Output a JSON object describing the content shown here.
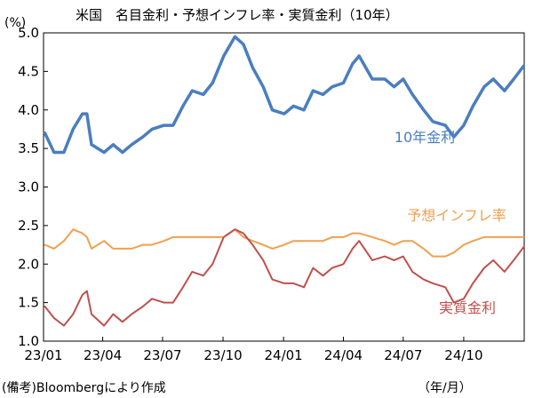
{
  "chart_data": {
    "type": "line",
    "title": "米国　名目金利・予想インフレ率・実質金利（10年）",
    "y_unit": "(%)",
    "x_unit": "（年/月）",
    "source_note": "(備考)Bloombergにより作成",
    "ylim": [
      1.0,
      5.0
    ],
    "y_ticks": [
      "1.0",
      "1.5",
      "2.0",
      "2.5",
      "3.0",
      "3.5",
      "4.0",
      "4.5",
      "5.0"
    ],
    "x_ticks": [
      "23/01",
      "23/04",
      "23/07",
      "23/10",
      "24/01",
      "24/04",
      "24/07",
      "24/10"
    ],
    "grid": false,
    "legend": "inline labels",
    "x": [
      "2023-01-03",
      "2023-01-17",
      "2023-02-01",
      "2023-02-15",
      "2023-03-01",
      "2023-03-08",
      "2023-03-15",
      "2023-04-03",
      "2023-04-17",
      "2023-05-01",
      "2023-05-15",
      "2023-06-01",
      "2023-06-15",
      "2023-07-03",
      "2023-07-17",
      "2023-08-01",
      "2023-08-15",
      "2023-09-01",
      "2023-09-15",
      "2023-10-02",
      "2023-10-19",
      "2023-11-01",
      "2023-11-15",
      "2023-12-01",
      "2023-12-15",
      "2024-01-02",
      "2024-01-16",
      "2024-02-01",
      "2024-02-15",
      "2024-03-01",
      "2024-03-15",
      "2024-04-01",
      "2024-04-15",
      "2024-04-25",
      "2024-05-15",
      "2024-06-03",
      "2024-06-17",
      "2024-07-01",
      "2024-07-15",
      "2024-08-01",
      "2024-08-15",
      "2024-09-03",
      "2024-09-16",
      "2024-10-01",
      "2024-10-15",
      "2024-11-01",
      "2024-11-15",
      "2024-12-02",
      "2024-12-16",
      "2024-12-31"
    ],
    "series": [
      {
        "name": "10年金利",
        "color": "#4a7ebf",
        "values": [
          3.7,
          3.45,
          3.45,
          3.75,
          3.95,
          3.95,
          3.55,
          3.45,
          3.55,
          3.45,
          3.55,
          3.65,
          3.75,
          3.8,
          3.8,
          4.05,
          4.25,
          4.2,
          4.35,
          4.7,
          4.95,
          4.85,
          4.55,
          4.3,
          4.0,
          3.95,
          4.05,
          4.0,
          4.25,
          4.2,
          4.3,
          4.35,
          4.6,
          4.7,
          4.4,
          4.4,
          4.3,
          4.4,
          4.2,
          4.0,
          3.85,
          3.8,
          3.65,
          3.8,
          4.05,
          4.3,
          4.4,
          4.25,
          4.4,
          4.57
        ]
      },
      {
        "name": "予想インフレ率",
        "color": "#f0a050",
        "values": [
          2.25,
          2.2,
          2.3,
          2.45,
          2.4,
          2.35,
          2.2,
          2.3,
          2.2,
          2.2,
          2.2,
          2.25,
          2.25,
          2.3,
          2.35,
          2.35,
          2.35,
          2.35,
          2.35,
          2.35,
          2.45,
          2.35,
          2.3,
          2.25,
          2.2,
          2.25,
          2.3,
          2.3,
          2.3,
          2.3,
          2.35,
          2.35,
          2.4,
          2.4,
          2.35,
          2.3,
          2.25,
          2.3,
          2.3,
          2.2,
          2.1,
          2.1,
          2.15,
          2.25,
          2.3,
          2.35,
          2.35,
          2.35,
          2.35,
          2.35
        ]
      },
      {
        "name": "実質金利",
        "color": "#c0504d",
        "values": [
          1.45,
          1.3,
          1.2,
          1.35,
          1.6,
          1.65,
          1.35,
          1.2,
          1.35,
          1.25,
          1.35,
          1.45,
          1.55,
          1.5,
          1.5,
          1.7,
          1.9,
          1.85,
          2.0,
          2.35,
          2.45,
          2.4,
          2.25,
          2.05,
          1.8,
          1.75,
          1.75,
          1.7,
          1.95,
          1.85,
          1.95,
          2.0,
          2.2,
          2.3,
          2.05,
          2.1,
          2.05,
          2.1,
          1.9,
          1.8,
          1.75,
          1.7,
          1.5,
          1.55,
          1.75,
          1.95,
          2.05,
          1.9,
          2.05,
          2.22
        ]
      }
    ]
  }
}
